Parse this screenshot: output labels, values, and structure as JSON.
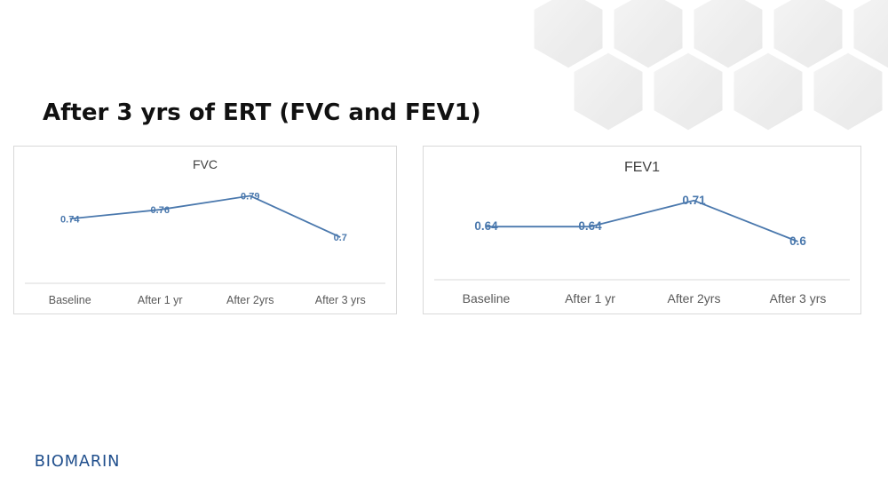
{
  "slide": {
    "title": "After 3 yrs of ERT (FVC and FEV1)",
    "logo_text": "BIOMARIN"
  },
  "colors": {
    "line": "#4a78ad",
    "label": "#4a78ad",
    "axis_text": "#595959",
    "title_text": "#404040",
    "brand": "#1f4e8c"
  },
  "chart_data": [
    {
      "type": "line",
      "title": "FVC",
      "categories": [
        "Baseline",
        "After 1 yr",
        "After 2yrs",
        "After 3 yrs"
      ],
      "series": [
        {
          "values": [
            0.74,
            0.76,
            0.79,
            0.7
          ]
        }
      ],
      "data_labels": [
        "0.74",
        "0.76",
        "0.79",
        "0.7"
      ],
      "ylim": [
        0.65,
        0.82
      ],
      "grid": false,
      "legend": "none"
    },
    {
      "type": "line",
      "title": "FEV1",
      "categories": [
        "Baseline",
        "After 1 yr",
        "After 2yrs",
        "After 3 yrs"
      ],
      "series": [
        {
          "values": [
            0.64,
            0.64,
            0.71,
            0.6
          ]
        }
      ],
      "data_labels": [
        "0.64",
        "0.64",
        "0.71",
        "0.6"
      ],
      "ylim": [
        0.55,
        0.75
      ],
      "grid": false,
      "legend": "none"
    }
  ]
}
